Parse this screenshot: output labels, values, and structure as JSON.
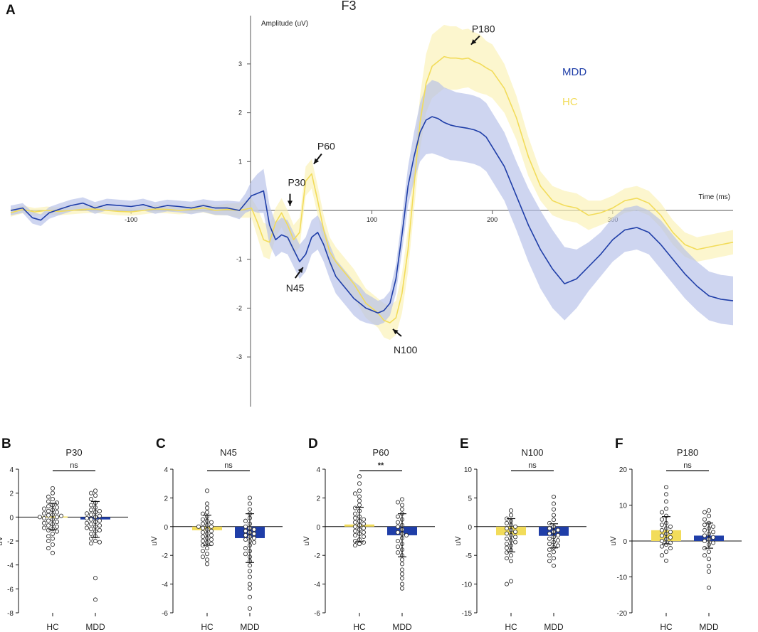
{
  "colors": {
    "mdd": "#1f3ea8",
    "mdd_band": "#b3bfe8",
    "hc": "#f2dc5a",
    "hc_band": "#fbf1b4",
    "axis": "#555555",
    "text": "#222222",
    "marker_edge": "#333333"
  },
  "chart_data": [
    {
      "panel": "A",
      "type": "line",
      "title": "F3",
      "xlabel": "Time (ms)",
      "ylabel": "Amplitude (uV)",
      "xlim": [
        -200,
        400
      ],
      "ylim": [
        -4,
        4
      ],
      "x_ticks": [
        -100,
        100,
        200,
        300
      ],
      "y_ticks": [
        -3,
        -2,
        -1,
        1,
        2,
        3
      ],
      "legend": {
        "placement": "right",
        "entries": [
          "MDD",
          "HC"
        ]
      },
      "series": [
        {
          "name": "MDD",
          "x": [
            -200,
            -190,
            -182,
            -175,
            -168,
            -160,
            -150,
            -140,
            -130,
            -120,
            -110,
            -100,
            -90,
            -80,
            -70,
            -60,
            -50,
            -40,
            -30,
            -20,
            -10,
            -5,
            0,
            5,
            10,
            15,
            20,
            25,
            30,
            35,
            40,
            45,
            50,
            55,
            60,
            65,
            70,
            75,
            80,
            85,
            90,
            95,
            100,
            105,
            110,
            115,
            120,
            125,
            130,
            135,
            140,
            145,
            150,
            155,
            160,
            165,
            170,
            175,
            180,
            185,
            190,
            195,
            200,
            210,
            220,
            230,
            240,
            250,
            260,
            270,
            280,
            290,
            300,
            310,
            320,
            330,
            340,
            350,
            360,
            370,
            380,
            390,
            400
          ],
          "y": [
            0,
            0.05,
            -0.15,
            -0.2,
            -0.05,
            0.02,
            0.1,
            0.15,
            0.05,
            0.12,
            0.1,
            0.08,
            0.12,
            0.05,
            0.1,
            0.08,
            0.05,
            0.1,
            0.05,
            0.05,
            0,
            0.15,
            0.3,
            0.35,
            0.4,
            -0.3,
            -0.6,
            -0.5,
            -0.55,
            -0.8,
            -1.05,
            -0.9,
            -0.55,
            -0.45,
            -0.7,
            -1.05,
            -1.35,
            -1.5,
            -1.65,
            -1.8,
            -1.9,
            -2.0,
            -2.05,
            -2.1,
            -2.05,
            -1.9,
            -1.4,
            -0.5,
            0.5,
            1.1,
            1.6,
            1.85,
            1.92,
            1.88,
            1.8,
            1.75,
            1.72,
            1.7,
            1.68,
            1.65,
            1.6,
            1.5,
            1.3,
            0.9,
            0.3,
            -0.3,
            -0.8,
            -1.2,
            -1.5,
            -1.4,
            -1.15,
            -0.9,
            -0.6,
            -0.4,
            -0.35,
            -0.45,
            -0.7,
            -1.0,
            -1.3,
            -1.55,
            -1.75,
            -1.82,
            -1.85
          ],
          "err": [
            0.1,
            0.1,
            0.12,
            0.12,
            0.12,
            0.12,
            0.12,
            0.12,
            0.12,
            0.12,
            0.12,
            0.12,
            0.12,
            0.12,
            0.12,
            0.12,
            0.13,
            0.13,
            0.14,
            0.15,
            0.18,
            0.2,
            0.3,
            0.4,
            0.45,
            0.4,
            0.35,
            0.35,
            0.35,
            0.35,
            0.35,
            0.35,
            0.35,
            0.35,
            0.35,
            0.35,
            0.35,
            0.35,
            0.35,
            0.35,
            0.35,
            0.3,
            0.28,
            0.25,
            0.25,
            0.25,
            0.3,
            0.35,
            0.4,
            0.5,
            0.6,
            0.7,
            0.75,
            0.75,
            0.72,
            0.72,
            0.7,
            0.7,
            0.7,
            0.7,
            0.7,
            0.7,
            0.7,
            0.7,
            0.7,
            0.75,
            0.8,
            0.8,
            0.75,
            0.6,
            0.5,
            0.45,
            0.45,
            0.45,
            0.45,
            0.45,
            0.5,
            0.5,
            0.5,
            0.5,
            0.5,
            0.5,
            0.5
          ]
        },
        {
          "name": "HC",
          "x": [
            -200,
            -190,
            -180,
            -170,
            -160,
            -150,
            -140,
            -130,
            -120,
            -110,
            -100,
            -90,
            -80,
            -70,
            -60,
            -50,
            -40,
            -30,
            -20,
            -10,
            0,
            5,
            10,
            15,
            20,
            25,
            30,
            35,
            40,
            45,
            50,
            55,
            60,
            65,
            70,
            75,
            80,
            85,
            90,
            95,
            100,
            105,
            110,
            115,
            120,
            125,
            130,
            135,
            140,
            145,
            150,
            155,
            160,
            165,
            170,
            175,
            180,
            185,
            190,
            195,
            200,
            210,
            220,
            230,
            240,
            250,
            260,
            270,
            280,
            290,
            300,
            310,
            320,
            330,
            340,
            350,
            360,
            370,
            380,
            390,
            400
          ],
          "y": [
            -0.05,
            0.02,
            -0.03,
            0,
            -0.02,
            0,
            0.02,
            0.03,
            0,
            -0.02,
            -0.03,
            0,
            0.03,
            0.02,
            0,
            0.02,
            0.05,
            0,
            0.02,
            0,
            0.05,
            -0.25,
            -0.6,
            -0.65,
            -0.25,
            -0.05,
            -0.3,
            -0.6,
            -0.45,
            0.6,
            0.75,
            0.2,
            -0.4,
            -0.85,
            -1.05,
            -1.2,
            -1.35,
            -1.5,
            -1.7,
            -1.9,
            -2.0,
            -2.1,
            -2.25,
            -2.3,
            -2.2,
            -1.7,
            -0.8,
            0.5,
            1.8,
            2.6,
            2.95,
            3.05,
            3.15,
            3.12,
            3.12,
            3.1,
            3.12,
            3.05,
            3.0,
            2.92,
            2.85,
            2.5,
            1.9,
            1.1,
            0.5,
            0.2,
            0.1,
            0.05,
            -0.1,
            -0.05,
            0.05,
            0.2,
            0.25,
            0.15,
            -0.1,
            -0.45,
            -0.7,
            -0.8,
            -0.75,
            -0.7,
            -0.65
          ],
          "err": [
            0.08,
            0.08,
            0.08,
            0.08,
            0.08,
            0.08,
            0.08,
            0.08,
            0.08,
            0.08,
            0.08,
            0.08,
            0.08,
            0.08,
            0.08,
            0.08,
            0.09,
            0.1,
            0.12,
            0.15,
            0.2,
            0.3,
            0.35,
            0.35,
            0.3,
            0.3,
            0.3,
            0.3,
            0.3,
            0.3,
            0.3,
            0.3,
            0.3,
            0.3,
            0.3,
            0.3,
            0.3,
            0.3,
            0.3,
            0.3,
            0.3,
            0.3,
            0.35,
            0.35,
            0.35,
            0.4,
            0.45,
            0.5,
            0.55,
            0.6,
            0.65,
            0.65,
            0.65,
            0.65,
            0.65,
            0.6,
            0.6,
            0.6,
            0.6,
            0.55,
            0.55,
            0.5,
            0.45,
            0.4,
            0.3,
            0.3,
            0.3,
            0.3,
            0.3,
            0.25,
            0.25,
            0.25,
            0.25,
            0.25,
            0.25,
            0.25,
            0.25,
            0.25,
            0.25,
            0.25,
            0.25
          ]
        }
      ],
      "annotations": [
        {
          "label": "P30",
          "x": 32,
          "y": 0.02
        },
        {
          "label": "P60",
          "x": 50,
          "y": 0.75
        },
        {
          "label": "N45",
          "x": 44,
          "y": -1.05
        },
        {
          "label": "N100",
          "x": 118,
          "y": -2.3
        },
        {
          "label": "P180",
          "x": 180,
          "y": 3.12
        }
      ]
    },
    {
      "panel": "B",
      "type": "scatter",
      "title": "P30",
      "ylabel": "uV",
      "categories": [
        "HC",
        "MDD"
      ],
      "ylim": [
        -8,
        4
      ],
      "y_ticks": [
        -8,
        -6,
        -4,
        -2,
        0,
        2,
        4
      ],
      "significance": "ns",
      "groups": [
        {
          "name": "HC",
          "mean": 0.05,
          "sd": 1.1,
          "points": [
            2.4,
            2.0,
            1.7,
            1.5,
            1.3,
            1.2,
            1.0,
            0.9,
            0.8,
            0.7,
            0.6,
            0.5,
            0.4,
            0.3,
            0.2,
            0.15,
            0.1,
            0.0,
            0.0,
            -0.1,
            -0.2,
            -0.3,
            -0.4,
            -0.5,
            -0.6,
            -0.7,
            -0.8,
            -0.9,
            -1.0,
            -1.1,
            -1.2,
            -1.4,
            -1.6,
            -1.8,
            -2.0,
            -2.3,
            -2.6,
            -3.0
          ]
        },
        {
          "name": "MDD",
          "mean": -0.2,
          "sd": 1.5,
          "points": [
            2.2,
            2.0,
            1.8,
            1.5,
            1.2,
            1.0,
            0.8,
            0.6,
            0.5,
            0.4,
            0.3,
            0.2,
            0.1,
            0.0,
            -0.1,
            -0.2,
            -0.3,
            -0.4,
            -0.5,
            -0.6,
            -0.7,
            -0.8,
            -0.9,
            -1.0,
            -1.1,
            -1.2,
            -1.4,
            -1.6,
            -1.8,
            -2.0,
            -2.1,
            -2.2,
            -5.1,
            -6.9
          ]
        }
      ]
    },
    {
      "panel": "C",
      "type": "scatter",
      "title": "N45",
      "ylabel": "uV",
      "categories": [
        "HC",
        "MDD"
      ],
      "ylim": [
        -6,
        4
      ],
      "y_ticks": [
        -6,
        -4,
        -2,
        0,
        2,
        4
      ],
      "significance": "ns",
      "groups": [
        {
          "name": "HC",
          "mean": -0.25,
          "sd": 1.05,
          "points": [
            2.5,
            1.6,
            1.3,
            1.0,
            0.9,
            0.7,
            0.5,
            0.4,
            0.3,
            0.2,
            0.1,
            0.0,
            0.0,
            -0.1,
            -0.2,
            -0.3,
            -0.4,
            -0.5,
            -0.6,
            -0.7,
            -0.8,
            -0.9,
            -1.0,
            -1.1,
            -1.2,
            -1.3,
            -1.5,
            -1.7,
            -1.9,
            -2.1,
            -2.3,
            -2.6
          ]
        },
        {
          "name": "MDD",
          "mean": -0.8,
          "sd": 1.7,
          "points": [
            2.0,
            1.6,
            1.2,
            0.9,
            0.6,
            0.4,
            0.2,
            0.0,
            -0.1,
            -0.2,
            -0.3,
            -0.4,
            -0.5,
            -0.6,
            -0.7,
            -0.8,
            -0.9,
            -1.0,
            -1.1,
            -1.3,
            -1.5,
            -1.7,
            -1.9,
            -2.1,
            -2.4,
            -2.7,
            -3.1,
            -3.5,
            -4.0,
            -4.3,
            -4.9,
            -5.7
          ]
        }
      ]
    },
    {
      "panel": "D",
      "type": "scatter",
      "title": "P60",
      "ylabel": "uV",
      "categories": [
        "HC",
        "MDD"
      ],
      "ylim": [
        -6,
        4
      ],
      "y_ticks": [
        -6,
        -4,
        -2,
        0,
        2,
        4
      ],
      "significance": "**",
      "groups": [
        {
          "name": "HC",
          "mean": 0.15,
          "sd": 1.2,
          "points": [
            3.5,
            3.0,
            2.5,
            2.3,
            2.1,
            1.8,
            1.5,
            1.3,
            1.1,
            0.9,
            0.7,
            0.6,
            0.5,
            0.4,
            0.3,
            0.2,
            0.1,
            0.0,
            -0.1,
            -0.2,
            -0.3,
            -0.4,
            -0.5,
            -0.6,
            -0.7,
            -0.9,
            -1.0,
            -1.1,
            -1.2,
            -1.3
          ]
        },
        {
          "name": "MDD",
          "mean": -0.6,
          "sd": 1.5,
          "points": [
            1.9,
            1.7,
            1.5,
            1.2,
            0.9,
            0.7,
            0.5,
            0.3,
            0.1,
            0.0,
            -0.2,
            -0.4,
            -0.5,
            -0.6,
            -0.8,
            -1.0,
            -1.2,
            -1.4,
            -1.6,
            -1.8,
            -2.0,
            -2.3,
            -2.6,
            -3.0,
            -3.3,
            -3.6,
            -4.0,
            -4.3
          ]
        }
      ]
    },
    {
      "panel": "E",
      "type": "scatter",
      "title": "N100",
      "ylabel": "uV",
      "categories": [
        "HC",
        "MDD"
      ],
      "ylim": [
        -15,
        10
      ],
      "y_ticks": [
        -15,
        -10,
        -5,
        0,
        5,
        10
      ],
      "significance": "ns",
      "groups": [
        {
          "name": "HC",
          "mean": -1.5,
          "sd": 2.9,
          "points": [
            2.8,
            2.0,
            1.4,
            1.0,
            0.6,
            0.3,
            0.0,
            -0.3,
            -0.6,
            -0.9,
            -1.2,
            -1.5,
            -1.8,
            -2.1,
            -2.4,
            -2.7,
            -3.0,
            -3.3,
            -3.7,
            -4.1,
            -4.5,
            -5.0,
            -5.5,
            -6.0,
            -9.5,
            -10.0
          ]
        },
        {
          "name": "MDD",
          "mean": -1.6,
          "sd": 2.1,
          "points": [
            5.2,
            4.0,
            3.0,
            2.0,
            1.2,
            0.6,
            0.0,
            -0.3,
            -0.6,
            -0.9,
            -1.2,
            -1.5,
            -1.8,
            -2.1,
            -2.4,
            -2.7,
            -3.0,
            -3.3,
            -3.6,
            -4.0,
            -4.4,
            -5.0,
            -5.5,
            -6.0,
            -6.8
          ]
        }
      ]
    },
    {
      "panel": "F",
      "type": "scatter",
      "title": "P180",
      "ylabel": "uV",
      "categories": [
        "HC",
        "MDD"
      ],
      "ylim": [
        -20,
        20
      ],
      "y_ticks": [
        -20,
        -10,
        0,
        10,
        20
      ],
      "significance": "ns",
      "groups": [
        {
          "name": "HC",
          "mean": 3.0,
          "sd": 3.8,
          "points": [
            15.0,
            13.0,
            11.0,
            9.0,
            8.0,
            7.0,
            6.0,
            5.0,
            4.5,
            4.0,
            3.5,
            3.0,
            2.5,
            2.0,
            1.5,
            1.0,
            0.5,
            0.0,
            -0.5,
            -1.0,
            -1.5,
            -2.0,
            -3.0,
            -4.0,
            -5.5
          ]
        },
        {
          "name": "MDD",
          "mean": 1.5,
          "sd": 3.5,
          "points": [
            8.5,
            8.0,
            7.0,
            6.0,
            5.0,
            4.5,
            4.0,
            3.5,
            3.0,
            2.5,
            2.0,
            1.5,
            1.0,
            0.5,
            0.0,
            -0.5,
            -1.0,
            -2.0,
            -3.0,
            -4.0,
            -5.0,
            -7.0,
            -8.5,
            -13.0
          ]
        }
      ]
    }
  ]
}
